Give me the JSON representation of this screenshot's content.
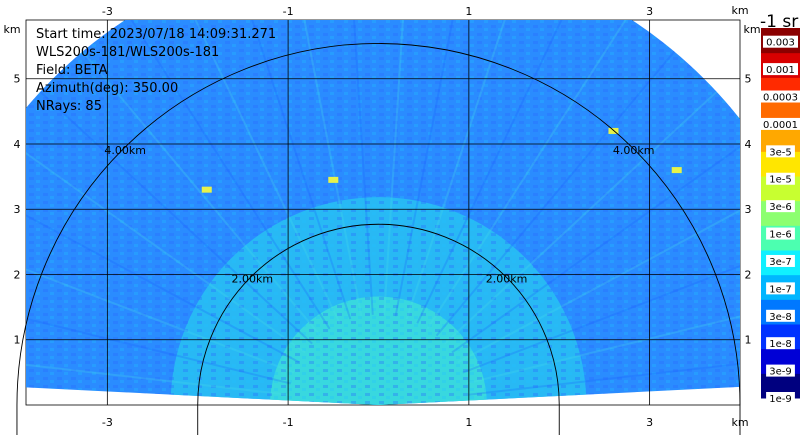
{
  "info": {
    "start_time": "Start time: 2023/07/18 14:09:31.271",
    "instrument": "WLS200s-181/WLS200s-181",
    "field": "Field: BETA",
    "azimuth": "Azimuth(deg): 350.00",
    "nrays": "NRays: 85"
  },
  "chart_data": {
    "type": "heatmap",
    "subtype": "polar-ppi-sector",
    "x_unit": "km",
    "y_unit": "km",
    "xlim": [
      -3.9,
      4.0
    ],
    "ylim": [
      0,
      5.9
    ],
    "x_ticks": [
      -3,
      -1,
      1,
      3
    ],
    "x_tick_labels": [
      "-3",
      "-1",
      "1",
      "3"
    ],
    "y_ticks": [
      1,
      2,
      3,
      4,
      5
    ],
    "y_tick_labels": [
      "1",
      "2",
      "3",
      "4",
      "5"
    ],
    "grid": true,
    "max_range_km": 5.1,
    "range_rings": [
      {
        "radius": 2.0,
        "label": "2.00km"
      },
      {
        "radius": 4.0,
        "label": "4.00km"
      }
    ],
    "colorbar": {
      "unit_label": "-1 sr",
      "position": "right",
      "colors": [
        "#00007f",
        "#0000d6",
        "#0032ff",
        "#0078ff",
        "#00b6ff",
        "#10f0ff",
        "#4cffb0",
        "#8cff70",
        "#c8ff30",
        "#ffe600",
        "#ffa800",
        "#ff6a00",
        "#ff2a00",
        "#d80000",
        "#8b0000"
      ],
      "tick_labels": [
        "1e-9",
        "3e-9",
        "1e-8",
        "3e-8",
        "1e-7",
        "3e-7",
        "1e-6",
        "3e-6",
        "1e-5",
        "3e-5",
        "0.0001",
        "0.0003",
        "0.001",
        "0.003"
      ]
    },
    "approx_value_range": [
      "1e-8",
      "3e-7"
    ],
    "notable_high_returns": [
      {
        "x": 2.6,
        "y": 4.2
      },
      {
        "x": 3.3,
        "y": 3.6
      },
      {
        "x": -1.9,
        "y": 3.3
      },
      {
        "x": -0.5,
        "y": 3.45
      }
    ]
  }
}
